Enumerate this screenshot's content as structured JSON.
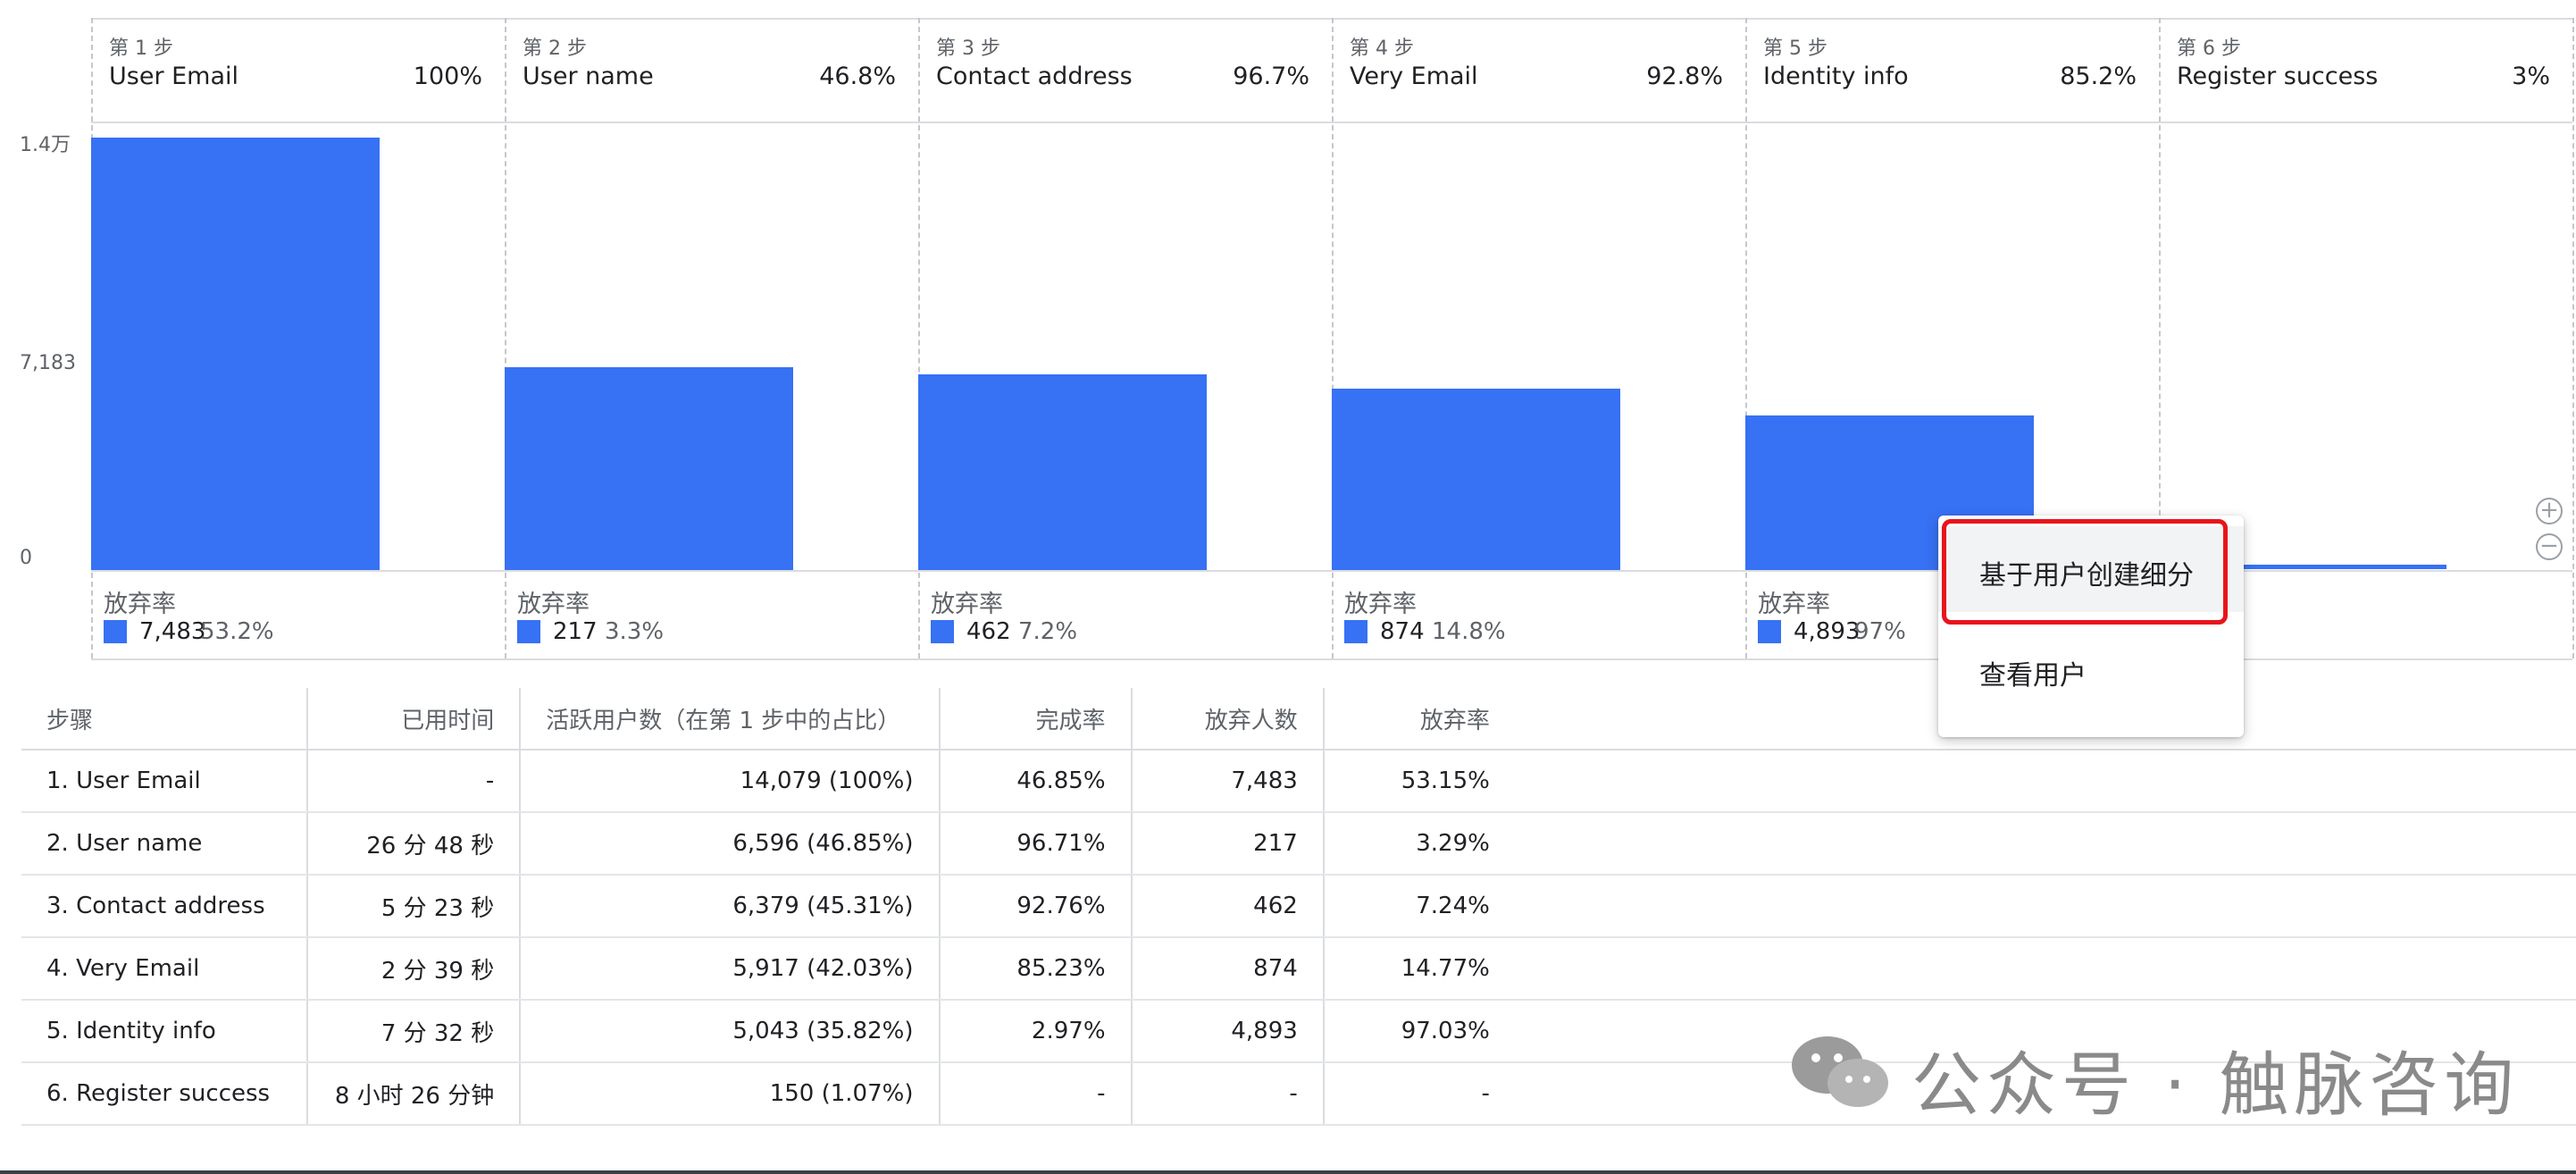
{
  "chart_data": {
    "type": "bar",
    "y_ticks": [
      "1.4万",
      "7,183",
      "0"
    ],
    "ylim": [
      0,
      14366
    ],
    "abandon_label": "放弃率",
    "steps": [
      {
        "step_label": "第 1 步",
        "name": "User Email",
        "percent": "100%",
        "value": 14079,
        "abandon_count": "7,483",
        "abandon_rate": "53.2%"
      },
      {
        "step_label": "第 2 步",
        "name": "User name",
        "percent": "46.8%",
        "value": 6596,
        "abandon_count": "217",
        "abandon_rate": "3.3%"
      },
      {
        "step_label": "第 3 步",
        "name": "Contact address",
        "percent": "96.7%",
        "value": 6379,
        "abandon_count": "462",
        "abandon_rate": "7.2%"
      },
      {
        "step_label": "第 4 步",
        "name": "Very Email",
        "percent": "92.8%",
        "value": 5917,
        "abandon_count": "874",
        "abandon_rate": "14.8%"
      },
      {
        "step_label": "第 5 步",
        "name": "Identity info",
        "percent": "85.2%",
        "value": 5043,
        "abandon_count": "4,893",
        "abandon_rate": "97%"
      },
      {
        "step_label": "第 6 步",
        "name": "Register success",
        "percent": "3%",
        "value": 150,
        "abandon_count": "",
        "abandon_rate": ""
      }
    ],
    "bar_color": "#3771f4"
  },
  "context_menu": {
    "items": [
      "基于用户创建细分",
      "查看用户"
    ],
    "highlight_color": "#e8141b"
  },
  "zoom": {
    "in_icon": "zoom-in-icon",
    "out_icon": "zoom-out-icon"
  },
  "table": {
    "headers": [
      "步骤",
      "已用时间",
      "活跃用户数（在第 1 步中的占比）",
      "完成率",
      "放弃人数",
      "放弃率"
    ],
    "rows": [
      [
        "1. User Email",
        "-",
        "14,079 (100%)",
        "46.85%",
        "7,483",
        "53.15%"
      ],
      [
        "2. User name",
        "26 分 48 秒",
        "6,596 (46.85%)",
        "96.71%",
        "217",
        "3.29%"
      ],
      [
        "3. Contact address",
        "5 分 23 秒",
        "6,379 (45.31%)",
        "92.76%",
        "462",
        "7.24%"
      ],
      [
        "4. Very Email",
        "2 分 39 秒",
        "5,917 (42.03%)",
        "85.23%",
        "874",
        "14.77%"
      ],
      [
        "5. Identity info",
        "7 分 32 秒",
        "5,043 (35.82%)",
        "2.97%",
        "4,893",
        "97.03%"
      ],
      [
        "6. Register success",
        "8 小时 26 分钟",
        "150 (1.07%)",
        "-",
        "-",
        "-"
      ]
    ]
  },
  "watermark": {
    "text": "公众号 · 触脉咨询",
    "icon": "wechat-icon"
  }
}
